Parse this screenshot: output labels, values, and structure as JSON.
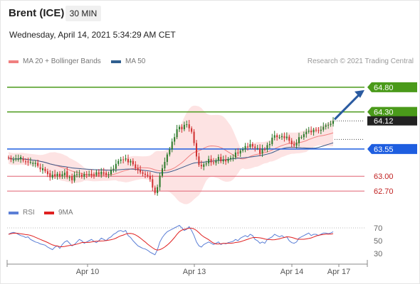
{
  "header": {
    "instrument": "Brent (ICE)",
    "timeframe": "30 MIN",
    "timestamp": "Wednesday, April 14, 2021 5:34:29 AM CET",
    "copyright": "Research © 2021 Trading Central"
  },
  "legend_main": [
    {
      "label": "MA 20 + Bollinger Bands",
      "color": "#f08080"
    },
    {
      "label": "MA 50",
      "color": "#2f5f8f"
    }
  ],
  "legend_rsi": [
    {
      "label": "RSI",
      "color": "#5b7fd6"
    },
    {
      "label": "9MA",
      "color": "#e02020"
    }
  ],
  "colors": {
    "up_candle": "#2a7a2a",
    "down_candle": "#d03030",
    "resistance": "#4a9a1a",
    "pivot": "#1e5ee0",
    "support": "#e06070",
    "bollinger_fill": "#fcdcdc",
    "ma20": "#f08080",
    "ma50": "#3a5a8a",
    "arrow": "#2a5aa0",
    "current": "#222222"
  },
  "chart_data": {
    "type": "candlestick",
    "x_ticks": [
      "Apr 10",
      "Apr 13",
      "Apr 14",
      "Apr 17"
    ],
    "ylim": [
      62.4,
      65.2
    ],
    "current_price": 64.12,
    "levels": [
      {
        "label": "64.80",
        "value": 64.8,
        "kind": "resistance"
      },
      {
        "label": "64.30",
        "value": 64.3,
        "kind": "resistance"
      },
      {
        "label": "63.55",
        "value": 63.55,
        "kind": "pivot"
      },
      {
        "label": "63.00",
        "value": 63.0,
        "kind": "support"
      },
      {
        "label": "62.70",
        "value": 62.7,
        "kind": "support"
      }
    ],
    "current_label": "64.12",
    "closes": [
      63.37,
      63.34,
      63.33,
      63.36,
      63.35,
      63.39,
      63.32,
      63.29,
      63.28,
      63.29,
      63.27,
      63.27,
      63.21,
      63.14,
      63.16,
      63.1,
      63.04,
      62.98,
      63.03,
      63.0,
      63.05,
      62.99,
      63.04,
      63.07,
      62.98,
      62.98,
      62.92,
      63.03,
      63.04,
      63.04,
      62.99,
      63.04,
      63.03,
      63.04,
      63.02,
      63.02,
      63.08,
      63.04,
      63.09,
      63.05,
      63.03,
      63.04,
      63.13,
      63.15,
      63.25,
      63.31,
      63.34,
      63.33,
      63.36,
      63.28,
      63.31,
      63.24,
      63.17,
      63.12,
      63.08,
      63.05,
      63.03,
      63.01,
      62.94,
      62.77,
      62.66,
      62.78,
      63.01,
      63.16,
      63.29,
      63.44,
      63.54,
      63.7,
      63.79,
      63.95,
      64.0,
      63.95,
      64.04,
      64.05,
      63.97,
      63.9,
      63.67,
      63.4,
      63.23,
      63.2,
      63.24,
      63.26,
      63.35,
      63.28,
      63.27,
      63.32,
      63.39,
      63.3,
      63.34,
      63.3,
      63.35,
      63.37,
      63.38,
      63.48,
      63.46,
      63.52,
      63.54,
      63.61,
      63.59,
      63.65,
      63.6,
      63.57,
      63.57,
      63.46,
      63.55,
      63.54,
      63.63,
      63.65,
      63.78,
      63.83,
      63.79,
      63.79,
      63.81,
      63.77,
      63.8,
      63.72,
      63.65,
      63.62,
      63.67,
      63.79,
      63.79,
      63.85,
      63.9,
      63.92,
      63.89,
      63.94,
      63.93,
      63.92,
      63.94,
      64.0,
      64.03,
      64.04,
      64.06,
      64.12
    ],
    "opens": [
      63.38,
      63.37,
      63.33,
      63.34,
      63.35,
      63.34,
      63.35,
      63.3,
      63.3,
      63.28,
      63.25,
      63.25,
      63.27,
      63.18,
      63.12,
      63.15,
      63.1,
      63.06,
      62.97,
      63.04,
      63.0,
      63.05,
      63.0,
      63.02,
      63.1,
      62.96,
      63.0,
      62.91,
      63.03,
      63.04,
      63.03,
      62.99,
      63.04,
      63.03,
      63.05,
      63.04,
      63.03,
      63.08,
      63.04,
      63.08,
      63.07,
      63.03,
      63.04,
      63.13,
      63.15,
      63.25,
      63.31,
      63.34,
      63.34,
      63.35,
      63.28,
      63.31,
      63.24,
      63.16,
      63.13,
      63.08,
      63.05,
      63.03,
      63.01,
      62.94,
      62.77,
      62.66,
      62.78,
      63.01,
      63.16,
      63.29,
      63.44,
      63.54,
      63.7,
      63.79,
      63.95,
      64.0,
      63.95,
      64.04,
      64.05,
      63.97,
      63.9,
      63.67,
      63.4,
      63.23,
      63.19,
      63.24,
      63.26,
      63.35,
      63.28,
      63.27,
      63.32,
      63.39,
      63.3,
      63.34,
      63.3,
      63.35,
      63.37,
      63.38,
      63.48,
      63.46,
      63.52,
      63.54,
      63.6,
      63.59,
      63.65,
      63.6,
      63.57,
      63.57,
      63.46,
      63.55,
      63.54,
      63.63,
      63.65,
      63.78,
      63.83,
      63.79,
      63.79,
      63.81,
      63.77,
      63.8,
      63.72,
      63.65,
      63.62,
      63.67,
      63.79,
      63.79,
      63.85,
      63.9,
      63.92,
      63.89,
      63.94,
      63.93,
      63.92,
      63.94,
      64.0,
      64.03,
      64.04,
      64.06
    ],
    "rsi": [
      60,
      62,
      63,
      62,
      60,
      58,
      57,
      55,
      56,
      52,
      50,
      48,
      47,
      45,
      44,
      43,
      40,
      38,
      36,
      40,
      42,
      38,
      44,
      48,
      50,
      46,
      42,
      44,
      48,
      52,
      50,
      46,
      48,
      50,
      52,
      49,
      47,
      50,
      54,
      52,
      50,
      54,
      56,
      60,
      62,
      65,
      66,
      64,
      66,
      58,
      55,
      50,
      46,
      42,
      40,
      38,
      37,
      35,
      32,
      30,
      28,
      36,
      48,
      55,
      60,
      64,
      66,
      68,
      70,
      72,
      74,
      70,
      66,
      68,
      72,
      66,
      58,
      48,
      42,
      40,
      44,
      46,
      48,
      46,
      44,
      46,
      48,
      44,
      46,
      45,
      47,
      48,
      49,
      52,
      50,
      54,
      56,
      58,
      56,
      60,
      58,
      52,
      50,
      46,
      48,
      46,
      52,
      54,
      56,
      60,
      58,
      56,
      58,
      55,
      56,
      50,
      47,
      46,
      48,
      54,
      56,
      58,
      60,
      62,
      58,
      60,
      60,
      58,
      60,
      62,
      62,
      61,
      62,
      64
    ],
    "rsi_levels": [
      {
        "label": "70",
        "value": 70
      },
      {
        "label": "50",
        "value": 50
      },
      {
        "label": "30",
        "value": 30
      }
    ],
    "rsi_ylim": [
      20,
      80
    ],
    "forecast": {
      "from": 64.12,
      "to": 64.8
    }
  }
}
